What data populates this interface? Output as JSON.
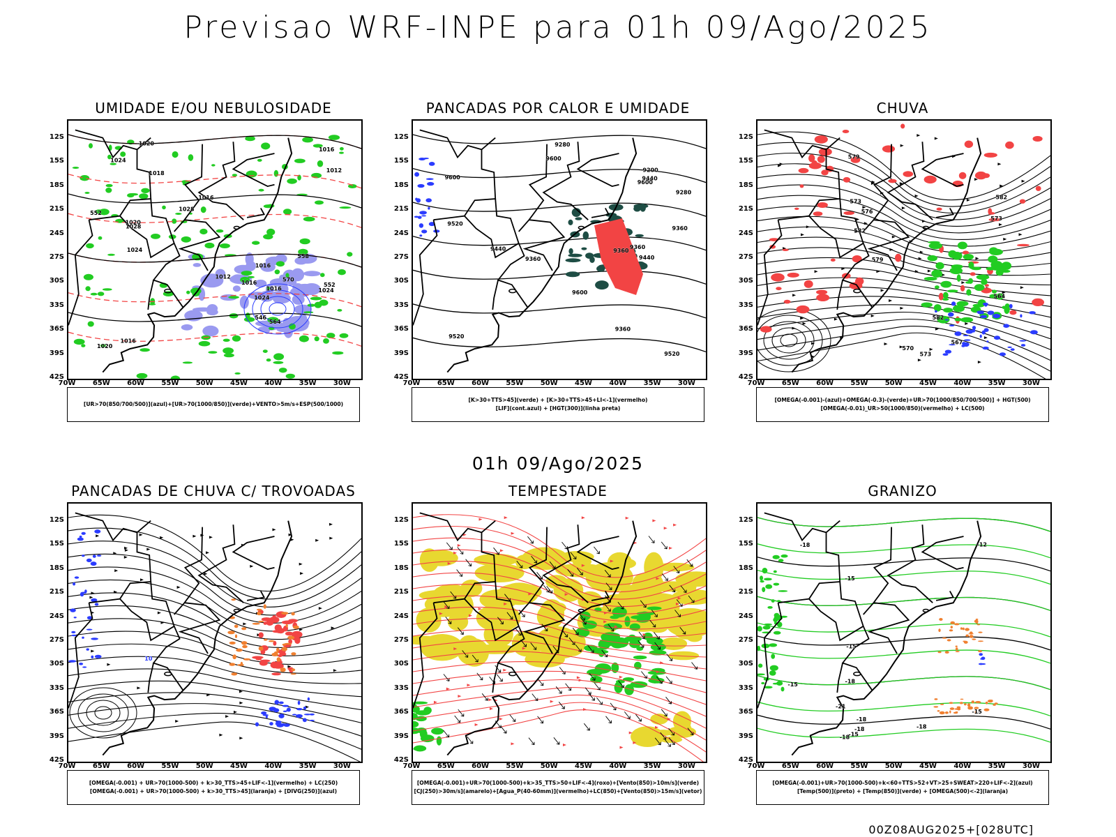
{
  "main_title": "Previsao WRF-INPE  para 01h 09/Ago/2025",
  "mid_title": "01h 09/Ago/2025",
  "stamp": "00Z08AUG2025+[028UTC]",
  "lat_labels": [
    "12S",
    "15S",
    "18S",
    "21S",
    "24S",
    "27S",
    "30S",
    "33S",
    "36S",
    "39S",
    "42S"
  ],
  "lon_labels": [
    "70W",
    "65W",
    "60W",
    "55W",
    "50W",
    "45W",
    "40W",
    "35W",
    "30W"
  ],
  "panels": [
    {
      "title": "UMIDADE E/OU NEBULOSIDADE",
      "legend": [
        "[UR>70(850/700/500)](azul)+[UR>70(1000/850)](verde)+VENTO>5m/s+ESP(500/1000)"
      ],
      "contour_labels": [
        "1016",
        "1020",
        "1024",
        "1016",
        "1016",
        "1016",
        "1018",
        "1028",
        "1020",
        "1024",
        "1012",
        "1012",
        "1016",
        "1024",
        "1024",
        "1020",
        "1016",
        "1028",
        "570",
        "546",
        "558",
        "552",
        "552",
        "564"
      ]
    },
    {
      "title": "PANCADAS POR CALOR E UMIDADE",
      "legend": [
        "[K>30+TTS>45](verde) + [K>30+TTS>45+LI<-1](vermelho)",
        "[LIF](cont.azul) + [HGT(300)](linha preta)"
      ],
      "contour_labels": [
        "9600",
        "9600",
        "9600",
        "9600",
        "9520",
        "9520",
        "9440",
        "9520",
        "9440",
        "9360",
        "9280",
        "9200",
        "9360",
        "9280",
        "9440",
        "9360",
        "9360",
        "9360"
      ]
    },
    {
      "title": "CHUVA",
      "legend": [
        "[OMEGA(-0.001)-(azul)+OMEGA(-0.3)-(verde)+UR>70(1000/850/700/500)] + HGT(500)",
        "[OMEGA(-0.01)_UR>50(1000/850)(vermelho) + LC(500)"
      ],
      "contour_labels": [
        "582",
        "582",
        "579",
        "576",
        "573",
        "573",
        "573",
        "570",
        "567",
        "579",
        "582",
        "564"
      ]
    },
    {
      "title": "PANCADAS DE CHUVA C/ TROVOADAS",
      "legend": [
        "[OMEGA(-0.001) + UR>70(1000-500) + k>30_TTS>45+LIF<-1](vermelho) + LC(250)",
        "[OMEGA(-0.001) + UR>70(1000-500) + k>30_TTS>45](laranja) + [DIVG(250)](azul)"
      ],
      "contour_labels": [
        "10"
      ]
    },
    {
      "title": "TEMPESTADE",
      "legend": [
        "[OMEGA(-0.001)+UR>70(1000-500)+k>35_TTS>50+LIF<-4](roxo)+[Vento(850)>10m/s](verde)",
        "[CJ(250)>30m/s](amarelo)+[Agua_P(40-60mm)](vermelho)+LC(850)+[Vento(850)>15m/s](vetor)"
      ],
      "contour_labels": []
    },
    {
      "title": "GRANIZO",
      "legend": [
        "[OMEGA(-0.001)+UR>70(1000-500)+k<60+TTS>52+VT>25+SWEAT>220+LIF<-2](azul)",
        "[Temp(500)](preto) + [Temp(850)](verde) + [OMEGA(500)<-2](laranja)"
      ],
      "contour_labels": [
        "-12",
        "-18",
        "-15",
        "-18",
        "-18",
        "-21",
        "-15",
        "-18",
        "-15",
        "-15",
        "-18",
        "-15",
        "-18"
      ]
    }
  ],
  "colors": {
    "green": "#22cc22",
    "blue": "#2b3cff",
    "red": "#f24444",
    "orange": "#f08030",
    "yellow": "#e8d830",
    "darkgreen": "#1e4d44",
    "lavender": "#9a9af0",
    "black": "#000000"
  }
}
